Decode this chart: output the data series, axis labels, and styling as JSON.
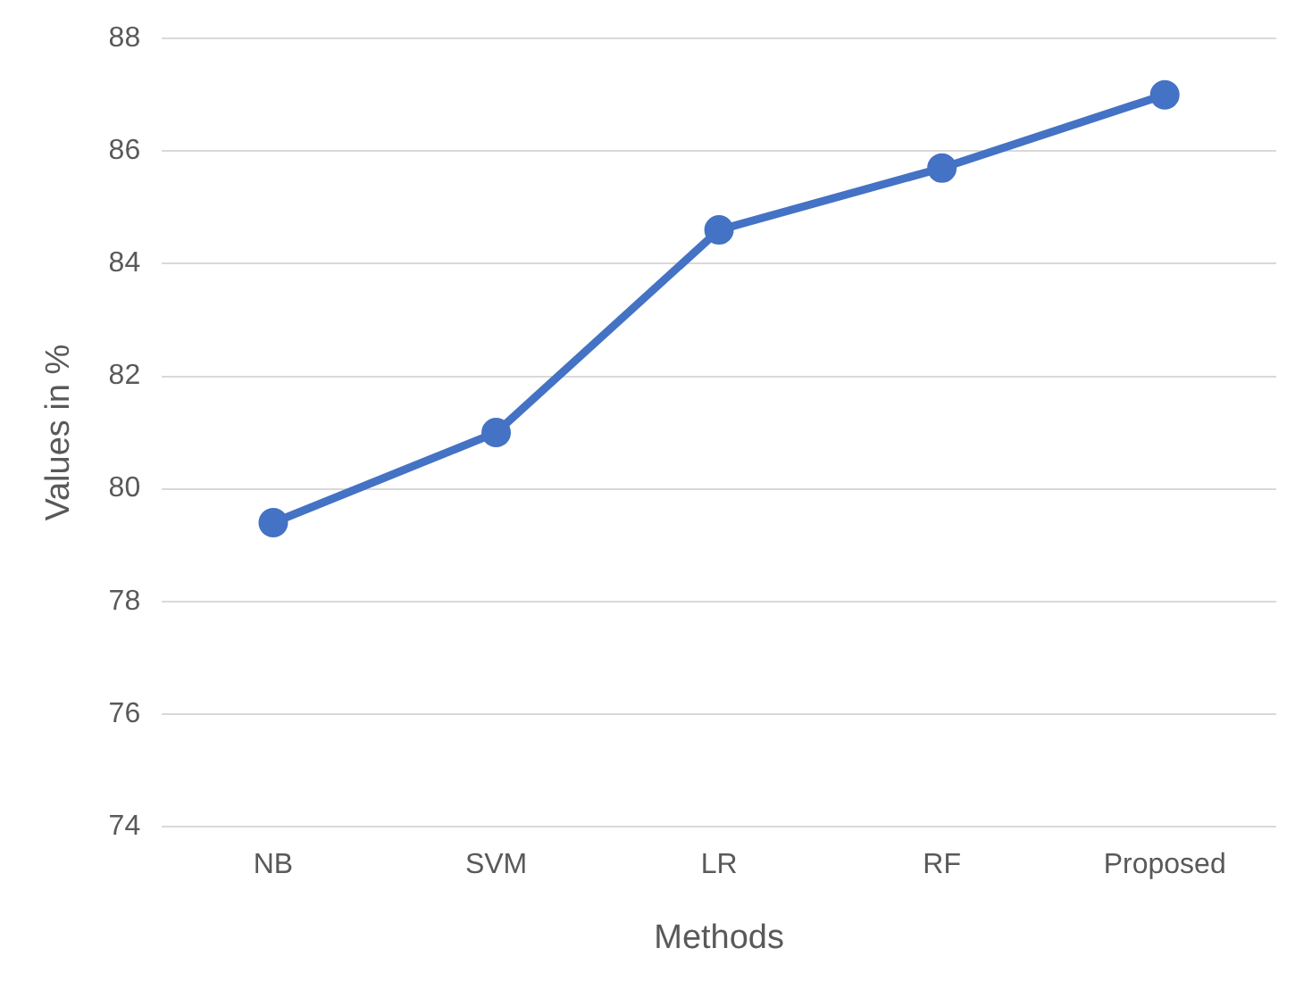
{
  "chart_data": {
    "type": "line",
    "xlabel": "Methods",
    "ylabel": "Values in %",
    "categories": [
      "NB",
      "SVM",
      "LR",
      "RF",
      "Proposed"
    ],
    "series": [
      {
        "color": "#4472c4",
        "values": [
          79.4,
          81.0,
          84.6,
          85.7,
          87.0
        ]
      }
    ],
    "ylim": [
      74,
      88
    ],
    "yticks": [
      74,
      76,
      78,
      80,
      82,
      84,
      86,
      88
    ],
    "grid": "y",
    "legend": false,
    "marker": "circle",
    "line_style": "solid"
  }
}
